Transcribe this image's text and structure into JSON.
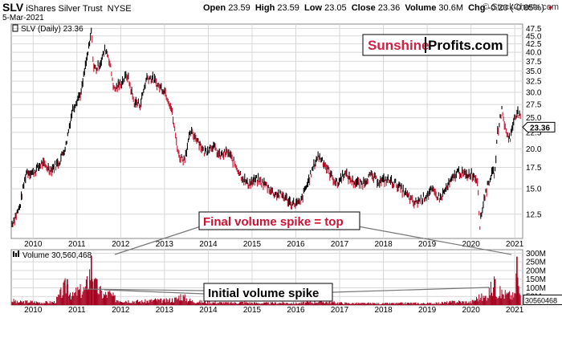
{
  "header": {
    "symbol": "SLV",
    "name": "iShares Silver Trust",
    "exchange": "NYSE",
    "date": "5-Mar-2021",
    "open_label": "Open",
    "open": "23.59",
    "high_label": "High",
    "high": "23.59",
    "low_label": "Low",
    "low": "23.05",
    "close_label": "Close",
    "close": "23.36",
    "volume_label": "Volume",
    "volume": "30.6M",
    "chg_label": "Chg",
    "chg": "-0.20 (-0.85%)",
    "copyright": "© StockCharts.com"
  },
  "price_panel": {
    "legend": "SLV (Daily) 23.36",
    "last_price_badge": "23.36",
    "brand_part1": "Sunshine",
    "brand_part2": "Profits.com"
  },
  "volume_panel": {
    "legend": "Volume 30,560,468",
    "last_volume_badge": "30560468"
  },
  "annotations": {
    "top": "Final volume spike = top",
    "initial": "Initial volume spike"
  },
  "colors": {
    "up": "#000000",
    "down": "#c8102e",
    "volume": "#a5001e",
    "grid": "#d8d8d8",
    "brand_red": "#cc2244"
  },
  "chart_data": [
    {
      "type": "line",
      "title": "SLV (Daily) 23.36",
      "scale": "log",
      "x_ticks": [
        "2010",
        "2011",
        "2012",
        "2013",
        "2014",
        "2015",
        "2016",
        "2017",
        "2018",
        "2019",
        "2020",
        "2021"
      ],
      "y_ticks": [
        12.5,
        15.0,
        17.5,
        20.0,
        22.5,
        25.0,
        27.5,
        30.0,
        32.5,
        35.0,
        37.5,
        40.0,
        42.5,
        45.0,
        47.5
      ],
      "ylim": [
        10.5,
        49
      ],
      "xlim": [
        2009.5,
        2021.18
      ],
      "grid": true,
      "series": [
        {
          "x": [
            2009.5,
            2009.7,
            2009.85,
            2010.0,
            2010.2,
            2010.4,
            2010.6,
            2010.75,
            2010.9,
            2011.0,
            2011.1,
            2011.2,
            2011.3,
            2011.33,
            2011.38,
            2011.45,
            2011.55,
            2011.65,
            2011.72,
            2011.85,
            2012.0,
            2012.15,
            2012.3,
            2012.45,
            2012.6,
            2012.75,
            2012.85,
            2013.0,
            2013.15,
            2013.25,
            2013.33,
            2013.45,
            2013.6,
            2013.75,
            2013.9,
            2014.1,
            2014.25,
            2014.45,
            2014.6,
            2014.75,
            2014.9,
            2015.1,
            2015.3,
            2015.5,
            2015.7,
            2015.9,
            2016.1,
            2016.3,
            2016.5,
            2016.6,
            2016.8,
            2016.95,
            2017.1,
            2017.3,
            2017.5,
            2017.7,
            2017.9,
            2018.1,
            2018.3,
            2018.5,
            2018.7,
            2018.9,
            2019.1,
            2019.3,
            2019.5,
            2019.7,
            2019.9,
            2020.0,
            2020.15,
            2020.2,
            2020.3,
            2020.45,
            2020.55,
            2020.6,
            2020.7,
            2020.8,
            2020.9,
            2021.0,
            2021.08,
            2021.18
          ],
          "y": [
            11.5,
            13.2,
            17.0,
            16.8,
            18.0,
            17.2,
            18.2,
            20.5,
            26.5,
            28.5,
            30.0,
            36.5,
            43.0,
            47.0,
            36.0,
            35.5,
            37.5,
            41.0,
            39.0,
            30.5,
            32.0,
            34.0,
            28.0,
            27.5,
            33.5,
            33.0,
            31.5,
            30.5,
            27.0,
            22.0,
            19.0,
            18.5,
            22.5,
            21.5,
            19.5,
            20.5,
            19.0,
            19.5,
            18.0,
            16.5,
            15.5,
            16.0,
            15.5,
            14.5,
            14.3,
            13.5,
            13.5,
            16.0,
            19.0,
            18.5,
            16.5,
            15.5,
            16.8,
            15.8,
            15.5,
            16.5,
            15.8,
            16.0,
            15.5,
            14.5,
            13.5,
            14.0,
            14.8,
            14.0,
            15.5,
            17.0,
            16.5,
            16.8,
            16.0,
            11.5,
            14.0,
            16.5,
            17.0,
            22.0,
            26.5,
            22.5,
            21.5,
            25.5,
            26.0,
            23.36
          ]
        }
      ]
    },
    {
      "type": "bar",
      "title": "Volume 30,560,468",
      "x_ticks": [
        "2010",
        "2011",
        "2012",
        "2013",
        "2014",
        "2015",
        "2016",
        "2017",
        "2018",
        "2019",
        "2020",
        "2021"
      ],
      "y_ticks": [
        "50M",
        "100M",
        "150M",
        "200M",
        "250M",
        "300M"
      ],
      "ylim": [
        0,
        320000000
      ],
      "grid": true,
      "series": [
        {
          "x": [
            2009.6,
            2009.9,
            2010.2,
            2010.5,
            2010.78,
            2010.9,
            2011.0,
            2011.2,
            2011.33,
            2011.4,
            2011.6,
            2011.75,
            2011.9,
            2012.2,
            2012.5,
            2012.8,
            2013.0,
            2013.3,
            2013.35,
            2013.6,
            2013.9,
            2014.2,
            2014.5,
            2014.8,
            2015.1,
            2015.4,
            2015.7,
            2016.0,
            2016.3,
            2016.5,
            2016.8,
            2017.1,
            2017.4,
            2017.7,
            2018.0,
            2018.3,
            2018.6,
            2018.9,
            2019.2,
            2019.5,
            2019.7,
            2020.0,
            2020.2,
            2020.3,
            2020.55,
            2020.6,
            2020.8,
            2021.0,
            2021.05,
            2021.08,
            2021.18
          ],
          "y": [
            20000000,
            25000000,
            18000000,
            22000000,
            150000000,
            60000000,
            95000000,
            110000000,
            285000000,
            150000000,
            70000000,
            80000000,
            40000000,
            30000000,
            25000000,
            35000000,
            30000000,
            45000000,
            70000000,
            30000000,
            22000000,
            18000000,
            15000000,
            20000000,
            15000000,
            14000000,
            16000000,
            13000000,
            18000000,
            25000000,
            20000000,
            14000000,
            12000000,
            12000000,
            11000000,
            12000000,
            14000000,
            12000000,
            13000000,
            20000000,
            25000000,
            20000000,
            60000000,
            50000000,
            150000000,
            95000000,
            75000000,
            60000000,
            280000000,
            120000000,
            30560468
          ]
        }
      ]
    }
  ]
}
